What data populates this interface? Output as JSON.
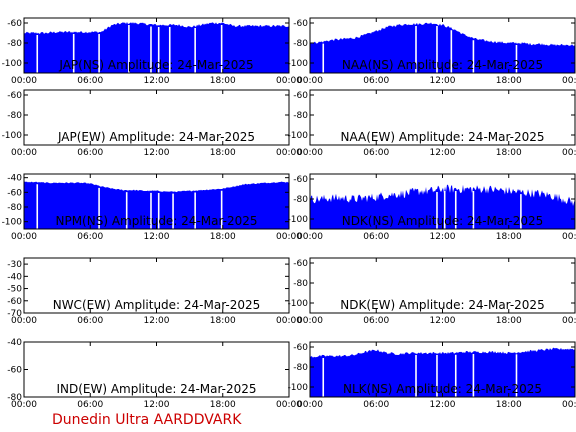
{
  "footer": {
    "label": "Dunedin Ultra AARDDVARK",
    "color": "#cc0000"
  },
  "colors": {
    "signal": "#0000ff",
    "axes": "#000000",
    "background": "#ffffff"
  },
  "x_tick_labels": [
    "00:00",
    "06:00",
    "12:00",
    "18:00",
    "00:00"
  ],
  "chart_data": [
    {
      "type": "area",
      "title": "JAP(NS) Amplitude: 24-Mar-2025",
      "xlim": [
        0,
        24
      ],
      "ylim": [
        -110,
        -55
      ],
      "ytick_values": [
        -100,
        -80,
        -60
      ],
      "ytick_labels": [
        "-100",
        "-80",
        "-60"
      ],
      "x": [
        0,
        1,
        2,
        3,
        4,
        5,
        6,
        7,
        8,
        9,
        10,
        11,
        12,
        13,
        14,
        15,
        16,
        17,
        18,
        19,
        20,
        21,
        22,
        23,
        24
      ],
      "y": [
        -70,
        -70,
        -70,
        -69,
        -69,
        -69,
        -69,
        -69,
        -62,
        -60,
        -60,
        -61,
        -62,
        -62,
        -62,
        -64,
        -62,
        -60,
        -60,
        -63,
        -63,
        -63,
        -63,
        -63,
        -63
      ],
      "noise": 1.2,
      "dropouts": [
        1.2,
        4.5,
        6.8,
        9.5,
        11.5,
        12.2,
        13.2,
        15.5,
        17.9
      ]
    },
    {
      "type": "area",
      "title": "NAA(NS) Amplitude: 24-Mar-2025",
      "xlim": [
        0,
        24
      ],
      "ylim": [
        -110,
        -55
      ],
      "ytick_values": [
        -100,
        -80,
        -60
      ],
      "ytick_labels": [
        "-100",
        "-80",
        "-60"
      ],
      "x": [
        0,
        1,
        2,
        3,
        4,
        5,
        6,
        7,
        8,
        9,
        10,
        11,
        12,
        13,
        14,
        15,
        16,
        17,
        18,
        19,
        20,
        21,
        22,
        23,
        24
      ],
      "y": [
        -80,
        -79,
        -77,
        -76,
        -75,
        -72,
        -68,
        -64,
        -62,
        -61,
        -61,
        -60,
        -62,
        -66,
        -72,
        -76,
        -78,
        -79,
        -80,
        -80,
        -81,
        -81,
        -82,
        -82,
        -82
      ],
      "noise": 1.2,
      "dropouts": [
        1.2,
        9.6,
        11.5,
        12.8,
        14.8,
        18.7
      ]
    },
    {
      "type": "area",
      "title": "JAP(EW) Amplitude: 24-Mar-2025",
      "xlim": [
        0,
        24
      ],
      "ylim": [
        -110,
        -55
      ],
      "ytick_values": [
        -100,
        -80,
        -60
      ],
      "ytick_labels": [
        "-100",
        "-80",
        "-60"
      ],
      "x": [],
      "y": [],
      "noise": 0,
      "dropouts": []
    },
    {
      "type": "area",
      "title": "NAA(EW) Amplitude: 24-Mar-2025",
      "xlim": [
        0,
        24
      ],
      "ylim": [
        -110,
        -55
      ],
      "ytick_values": [
        -100,
        -80,
        -60
      ],
      "ytick_labels": [
        "-100",
        "-80",
        "-60"
      ],
      "x": [],
      "y": [],
      "noise": 0,
      "dropouts": []
    },
    {
      "type": "area",
      "title": "NPM(NS) Amplitude: 24-Mar-2025",
      "xlim": [
        0,
        24
      ],
      "ylim": [
        -110,
        -35
      ],
      "ytick_values": [
        -100,
        -80,
        -60,
        -40
      ],
      "ytick_labels": [
        "-100",
        "-80",
        "-60",
        "-40"
      ],
      "x": [
        0,
        1,
        2,
        3,
        4,
        5,
        6,
        7,
        8,
        9,
        10,
        11,
        12,
        13,
        14,
        15,
        16,
        17,
        18,
        19,
        20,
        21,
        22,
        23,
        24
      ],
      "y": [
        -46,
        -46,
        -47,
        -47,
        -47,
        -47,
        -48,
        -52,
        -55,
        -57,
        -57,
        -58,
        -58,
        -59,
        -59,
        -58,
        -57,
        -56,
        -55,
        -52,
        -49,
        -48,
        -47,
        -46,
        -46
      ],
      "noise": 0.8,
      "dropouts": [
        1.2,
        6.8,
        9.3,
        11.5,
        12.2,
        13.5,
        15.5,
        17.9
      ]
    },
    {
      "type": "area",
      "title": "NDK(NS) Amplitude: 24-Mar-2025",
      "xlim": [
        0,
        24
      ],
      "ylim": [
        -110,
        -55
      ],
      "ytick_values": [
        -100,
        -80,
        -60
      ],
      "ytick_labels": [
        "-100",
        "-80",
        "-60"
      ],
      "x": [
        0,
        1,
        2,
        3,
        4,
        5,
        6,
        7,
        8,
        9,
        10,
        11,
        12,
        13,
        14,
        15,
        16,
        17,
        18,
        19,
        20,
        21,
        22,
        23,
        24
      ],
      "y": [
        -80,
        -80,
        -79,
        -79,
        -80,
        -79,
        -78,
        -76,
        -75,
        -74,
        -72,
        -72,
        -70,
        -70,
        -70,
        -70,
        -70,
        -71,
        -72,
        -73,
        -74,
        -75,
        -77,
        -80,
        -84
      ],
      "noise": 4.5,
      "dropouts": [
        11.5,
        12.2,
        13.2,
        14.8,
        19.1
      ]
    },
    {
      "type": "area",
      "title": "NWC(EW) Amplitude: 24-Mar-2025",
      "xlim": [
        0,
        24
      ],
      "ylim": [
        -70,
        -25
      ],
      "ytick_values": [
        -70,
        -60,
        -50,
        -40,
        -30
      ],
      "ytick_labels": [
        "-70",
        "-60",
        "-50",
        "-40",
        "-30"
      ],
      "x": [],
      "y": [],
      "noise": 0,
      "dropouts": []
    },
    {
      "type": "area",
      "title": "NDK(EW) Amplitude: 24-Mar-2025",
      "xlim": [
        0,
        24
      ],
      "ylim": [
        -110,
        -55
      ],
      "ytick_values": [
        -100,
        -80,
        -60
      ],
      "ytick_labels": [
        "-100",
        "-80",
        "-60"
      ],
      "x": [],
      "y": [],
      "noise": 0,
      "dropouts": []
    },
    {
      "type": "area",
      "title": "IND(EW) Amplitude: 24-Mar-2025",
      "xlim": [
        0,
        24
      ],
      "ylim": [
        -80,
        -40
      ],
      "ytick_values": [
        -80,
        -60,
        -40
      ],
      "ytick_labels": [
        "-80",
        "-60",
        "-40"
      ],
      "x": [],
      "y": [],
      "noise": 0,
      "dropouts": []
    },
    {
      "type": "area",
      "title": "NLK(NS) Amplitude: 24-Mar-2025",
      "xlim": [
        0,
        24
      ],
      "ylim": [
        -110,
        -55
      ],
      "ytick_values": [
        -100,
        -80,
        -60
      ],
      "ytick_labels": [
        "-100",
        "-80",
        "-60"
      ],
      "x": [
        0,
        1,
        2,
        3,
        4,
        5,
        6,
        7,
        8,
        9,
        10,
        11,
        12,
        13,
        14,
        15,
        16,
        17,
        18,
        19,
        20,
        21,
        22,
        23,
        24
      ],
      "y": [
        -70,
        -69,
        -69,
        -69,
        -68,
        -65,
        -63,
        -66,
        -67,
        -66,
        -66,
        -66,
        -66,
        -66,
        -65,
        -65,
        -65,
        -65,
        -66,
        -65,
        -64,
        -63,
        -62,
        -62,
        -62
      ],
      "noise": 1.2,
      "dropouts": [
        1.2,
        9.6,
        11.5,
        13.2,
        14.8,
        18.7
      ]
    }
  ]
}
